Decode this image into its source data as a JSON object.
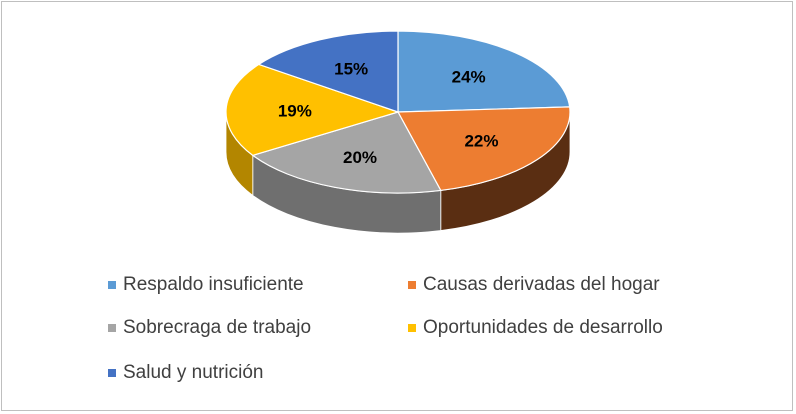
{
  "chart_data": {
    "type": "pie",
    "style": "3d",
    "slices": [
      {
        "label": "Respaldo insuficiente",
        "value": 24,
        "value_label": "24%",
        "color": "#5b9bd5",
        "side_color": "#3e6f9c"
      },
      {
        "label": "Causas derivadas del hogar",
        "value": 22,
        "value_label": "22%",
        "color": "#ed7d31",
        "side_color": "#5a2e12"
      },
      {
        "label": "Sobrecraga de trabajo",
        "value": 20,
        "value_label": "20%",
        "color": "#a5a5a5",
        "side_color": "#6f6f6f"
      },
      {
        "label": "Oportunidades de desarrollo",
        "value": 19,
        "value_label": "19%",
        "color": "#ffc000",
        "side_color": "#b38600"
      },
      {
        "label": "Salud y nutrición",
        "value": 15,
        "value_label": "15%",
        "color": "#4472c4",
        "side_color": "#2f5090"
      }
    ],
    "legend_position": "bottom"
  }
}
